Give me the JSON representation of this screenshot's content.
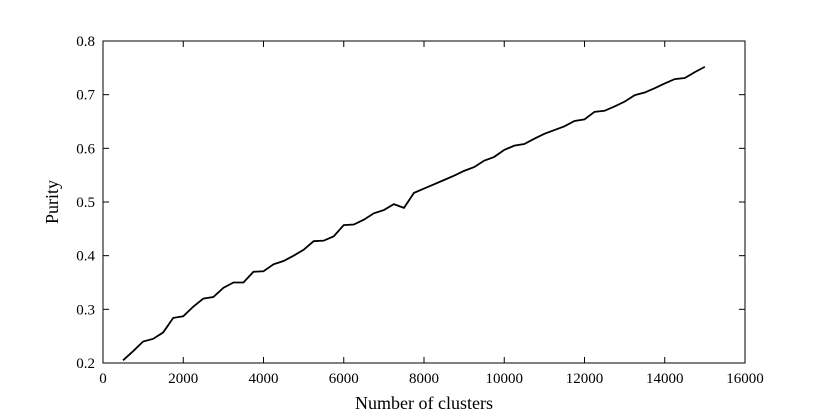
{
  "chart_data": {
    "type": "line",
    "x_label": "Number of clusters",
    "y_label": "Purity",
    "x": [
      500,
      750,
      1000,
      1250,
      1500,
      1750,
      2000,
      2250,
      2500,
      2750,
      3000,
      3250,
      3500,
      3750,
      4000,
      4250,
      4500,
      4750,
      5000,
      5250,
      5500,
      5750,
      6000,
      6250,
      6500,
      6750,
      7000,
      7250,
      7500,
      7750,
      8000,
      8250,
      8500,
      8750,
      9000,
      9250,
      9500,
      9750,
      10000,
      10250,
      10500,
      10750,
      11000,
      11250,
      11500,
      11750,
      12000,
      12250,
      12500,
      12750,
      13000,
      13250,
      13500,
      13750,
      14000,
      14250,
      14500,
      14750,
      15000
    ],
    "series": [
      {
        "color": "#000000",
        "values": [
          0.205,
          0.222,
          0.24,
          0.245,
          0.257,
          0.284,
          0.287,
          0.305,
          0.32,
          0.323,
          0.34,
          0.35,
          0.35,
          0.37,
          0.371,
          0.384,
          0.39,
          0.4,
          0.411,
          0.427,
          0.428,
          0.436,
          0.457,
          0.458,
          0.467,
          0.479,
          0.485,
          0.496,
          0.489,
          0.517,
          0.525,
          0.533,
          0.541,
          0.549,
          0.558,
          0.565,
          0.577,
          0.584,
          0.597,
          0.605,
          0.608,
          0.618,
          0.627,
          0.634,
          0.641,
          0.651,
          0.654,
          0.668,
          0.67,
          0.678,
          0.687,
          0.699,
          0.704,
          0.712,
          0.721,
          0.729,
          0.731,
          0.742,
          0.752
        ]
      }
    ],
    "xlim": [
      0,
      16000
    ],
    "xticks": [
      0,
      2000,
      4000,
      6000,
      8000,
      10000,
      12000,
      14000,
      16000
    ],
    "ylim": [
      0.2,
      0.8
    ],
    "yticks": [
      0.2,
      0.3,
      0.4,
      0.5,
      0.6,
      0.7,
      0.8
    ]
  }
}
